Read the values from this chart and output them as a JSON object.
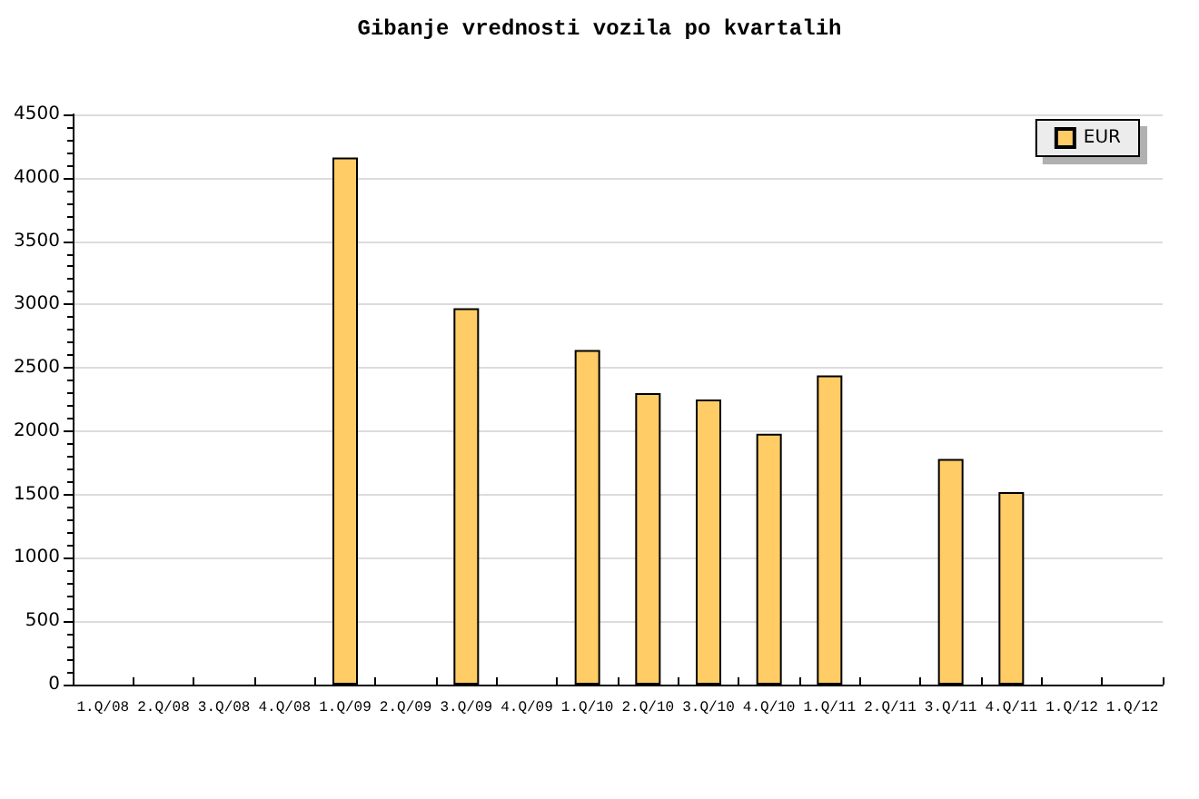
{
  "chart_data": {
    "type": "bar",
    "title": "Gibanje vrednosti vozila po kvartalih",
    "categories": [
      "1.Q/08",
      "2.Q/08",
      "3.Q/08",
      "4.Q/08",
      "1.Q/09",
      "2.Q/09",
      "3.Q/09",
      "4.Q/09",
      "1.Q/10",
      "2.Q/10",
      "3.Q/10",
      "4.Q/10",
      "1.Q/11",
      "2.Q/11",
      "3.Q/11",
      "4.Q/11",
      "1.Q/12",
      "1.Q/12"
    ],
    "series": [
      {
        "name": "EUR",
        "color": "#ffcc66",
        "values": [
          null,
          null,
          null,
          null,
          4160,
          null,
          2970,
          null,
          2640,
          2300,
          2250,
          1980,
          2440,
          null,
          1780,
          1520,
          null,
          null
        ]
      }
    ],
    "ylim": [
      0,
      4500
    ],
    "yticks": [
      0,
      500,
      1000,
      1500,
      2000,
      2500,
      3000,
      3500,
      4000,
      4500
    ],
    "grid": "y",
    "legend": "top right"
  }
}
